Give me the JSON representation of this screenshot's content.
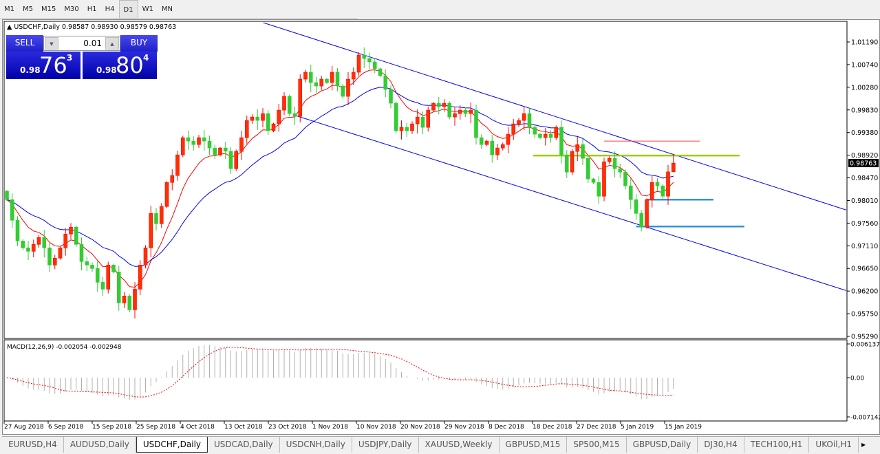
{
  "timeframes": [
    "M1",
    "M5",
    "M15",
    "M30",
    "H1",
    "H4",
    "D1",
    "W1",
    "MN"
  ],
  "active_timeframe": "D1",
  "chart_title": {
    "symbol": "USDCHF,Daily",
    "ohlc": "0.98587 0.98930 0.98579 0.98763"
  },
  "trade_panel": {
    "sell_label": "SELL",
    "buy_label": "BUY",
    "lot": "0.01",
    "sell_prefix": "0.98",
    "sell_big": "76",
    "sell_pip": "3",
    "buy_prefix": "0.98",
    "buy_big": "80",
    "buy_pip": "4",
    "sell_color": "#2a2ae0"
  },
  "tabs": [
    "EURUSD,H4",
    "AUDUSD,Daily",
    "USDCHF,Daily",
    "USDCAD,Daily",
    "USDCNH,Daily",
    "USDJPY,Daily",
    "XAUUSD,Weekly",
    "GBPUSD,M15",
    "SP500,M15",
    "GBPUSD,Daily",
    "DJ30,H4",
    "TECH100,H1",
    "UKOil,H1"
  ],
  "active_tab": "USDCHF,Daily",
  "colors": {
    "bull": "#ff3000",
    "bear": "#32cd32",
    "ma_fast": "#ff0000",
    "ma_slow": "#0000ff",
    "channel": "#0000ff",
    "resistance": "#9acd00",
    "support": "#3090e0",
    "macd_hist": "#b0b0b0",
    "macd_signal": "#ff0000"
  },
  "chart_data": {
    "type": "candlestick",
    "symbol": "USDCHF",
    "timeframe": "Daily",
    "price_ticks": [
      "1.01190",
      "1.00740",
      "1.00280",
      "0.99830",
      "0.99380",
      "0.98920",
      "0.98470",
      "0.98010",
      "0.97560",
      "0.97110",
      "0.96650",
      "0.96200",
      "0.95750",
      "0.95290"
    ],
    "ylim": [
      0.9529,
      1.0119
    ],
    "current_price": "0.98763",
    "last_bar": {
      "open": 0.98587,
      "high": 0.9893,
      "low": 0.98579,
      "close": 0.98763
    },
    "time_labels": [
      "27 Aug 2018",
      "6 Sep 2018",
      "15 Sep 2018",
      "25 Sep 2018",
      "4 Oct 2018",
      "13 Oct 2018",
      "23 Oct 2018",
      "1 Nov 2018",
      "10 Nov 2018",
      "20 Nov 2018",
      "29 Nov 2018",
      "8 Dec 2018",
      "18 Dec 2018",
      "27 Dec 2018",
      "5 Jan 2019",
      "15 Jan 2019"
    ],
    "closes": [
      0.9803,
      0.97616,
      0.97202,
      0.97064,
      0.96995,
      0.97133,
      0.97271,
      0.97064,
      0.96719,
      0.96857,
      0.97064,
      0.9734,
      0.97478,
      0.97133,
      0.96788,
      0.96719,
      0.9665,
      0.96374,
      0.96236,
      0.96719,
      0.96581,
      0.9596,
      0.96098,
      0.95822,
      0.96236,
      0.96719,
      0.97064,
      0.97754,
      0.97547,
      0.97892,
      0.98375,
      0.98513,
      0.98927,
      0.99272,
      0.99203,
      0.99134,
      0.99272,
      0.99203,
      0.99065,
      0.98927,
      0.99065,
      0.99,
      0.98651,
      0.98996,
      0.99272,
      0.99617,
      0.99686,
      0.99617,
      0.99755,
      0.9941,
      0.99548,
      0.99824,
      1.001,
      0.99755,
      0.997,
      1.00445,
      1.00583,
      1.00376,
      1.00307,
      1.00445,
      1.00376,
      1.00583,
      1.00307,
      1.001,
      1.00445,
      1.00583,
      1.00928,
      1.00859,
      1.0079,
      1.00652,
      1.00514,
      1.00238,
      0.99962,
      0.9941,
      0.99479,
      0.9941,
      0.99548,
      0.99686,
      0.99479,
      0.99824,
      0.99962,
      0.99893,
      0.99962,
      0.99686,
      0.99755,
      0.99824,
      0.99755,
      0.99824,
      0.99272,
      0.99134,
      0.99203,
      0.98927,
      0.99065,
      0.99134,
      0.99341,
      0.99548,
      0.99617,
      0.99755,
      0.99479,
      0.99341,
      0.99272,
      0.99341,
      0.99272,
      0.99479,
      0.98927,
      0.98582,
      0.98996,
      0.99134,
      0.98858,
      0.98444,
      0.98375,
      0.98099,
      0.98789,
      0.98858,
      0.98651,
      0.98582,
      0.98306,
      0.9803,
      0.97754,
      0.97478,
      0.9803,
      0.98375,
      0.98306,
      0.98099,
      0.98587,
      0.98763
    ],
    "channel_upper": [
      [
        48.1,
        1.01576
      ],
      [
        157.4,
        0.97823
      ]
    ],
    "channel_lower": [
      [
        54.2,
        0.99713
      ],
      [
        157.4,
        0.96208
      ]
    ],
    "hlines": [
      {
        "price": 0.98913,
        "from": 98.7,
        "to": 137.4,
        "color": "#9acd00"
      },
      {
        "price": 0.99203,
        "from": 112,
        "to": 130,
        "color": "#ff4040"
      },
      {
        "price": 0.9803,
        "from": 120,
        "to": 132.5,
        "color": "#3090e0"
      },
      {
        "price": 0.97492,
        "from": 118,
        "to": 138.3,
        "color": "#3090e0"
      }
    ],
    "macd": {
      "label": "MACD(12,26,9) -0.002054 -0.002948",
      "ticks": [
        "0.006137",
        "0.00",
        "-0.007142"
      ],
      "ylim": [
        -0.007142,
        0.006137
      ]
    }
  }
}
